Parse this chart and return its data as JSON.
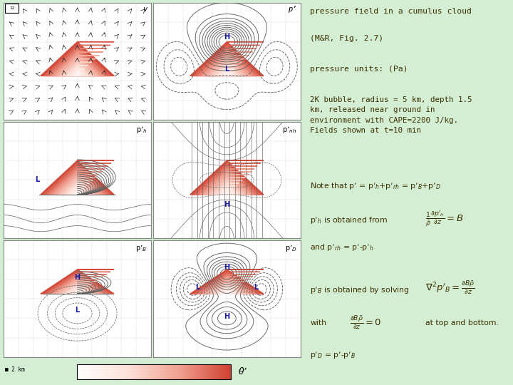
{
  "bg_color": "#d4eed4",
  "text_color": "#3a3000",
  "title_line1": "pressure field in a cumulus cloud",
  "title_line2": "(M&R, Fig. 2.7)",
  "subtitle": "pressure units: (Pa)",
  "desc": "2K bubble, radius = 5 km, depth 1.5\nkm, released near ground in\nenvironment with CAPE=2200 J/kg.\nFields shown at t=10 min",
  "colorbar_label": "θ’",
  "panel_border_color": "#888888",
  "contour_color": "#606060",
  "grid_color": "#aaaaaa",
  "hl_color": "#1a1aaa"
}
